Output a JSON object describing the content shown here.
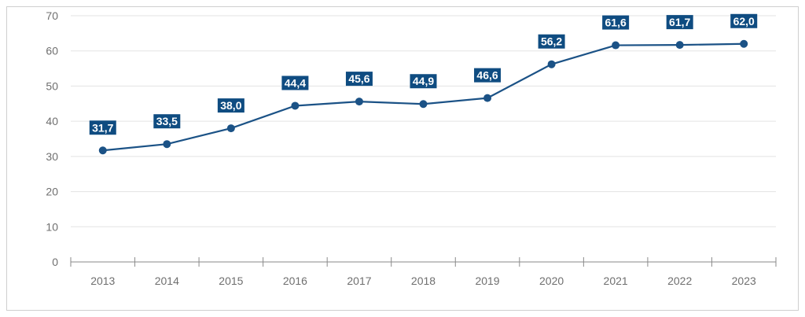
{
  "chart_data": {
    "type": "line",
    "title": "",
    "xlabel": "",
    "ylabel": "",
    "categories": [
      "2013",
      "2014",
      "2015",
      "2016",
      "2017",
      "2018",
      "2019",
      "2020",
      "2021",
      "2022",
      "2023"
    ],
    "values": [
      31.7,
      33.5,
      38.0,
      44.4,
      45.6,
      44.9,
      46.6,
      56.2,
      61.6,
      61.7,
      62.0
    ],
    "data_labels": [
      "31,7",
      "33,5",
      "38,0",
      "44,4",
      "45,6",
      "44,9",
      "46,6",
      "56,2",
      "61,6",
      "61,7",
      "62,0"
    ],
    "yticks": [
      "0",
      "10",
      "20",
      "30",
      "40",
      "50",
      "60",
      "70"
    ],
    "ylim": [
      0,
      70
    ],
    "grid": true,
    "legend": "none",
    "colors": {
      "line": "#1b5286",
      "label_bg": "#0f4c81",
      "grid": "#e3e3e3",
      "axis": "#8a8a8a"
    }
  }
}
